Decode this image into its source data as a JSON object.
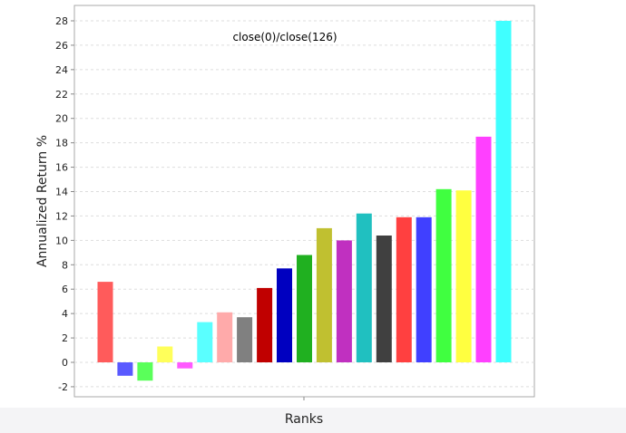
{
  "chart_data": {
    "type": "bar",
    "title": "close(0)/close(126)",
    "xlabel": "Ranks",
    "ylabel": "Annualized Return %",
    "ylim": [
      -3,
      29
    ],
    "yticks": [
      -2,
      0,
      2,
      4,
      6,
      8,
      10,
      12,
      14,
      16,
      18,
      20,
      22,
      24,
      26,
      28
    ],
    "grid": true,
    "legend": "none",
    "values": [
      6.6,
      -1.1,
      -1.5,
      1.3,
      -0.5,
      3.3,
      4.1,
      3.7,
      6.1,
      7.7,
      8.8,
      11.0,
      10.0,
      12.2,
      10.4,
      11.9,
      11.9,
      14.2,
      14.1,
      18.5,
      28.0
    ],
    "colors": [
      "#ff5b5b",
      "#5a5aff",
      "#5aff5a",
      "#ffff5a",
      "#ff5aff",
      "#5affff",
      "#ffaaaa",
      "#808080",
      "#c00000",
      "#0000c0",
      "#20b020",
      "#c0c030",
      "#c030c0",
      "#20c0c0",
      "#404040",
      "#ff4040",
      "#4040ff",
      "#40ff40",
      "#ffff40",
      "#ff40ff",
      "#40ffff"
    ]
  }
}
